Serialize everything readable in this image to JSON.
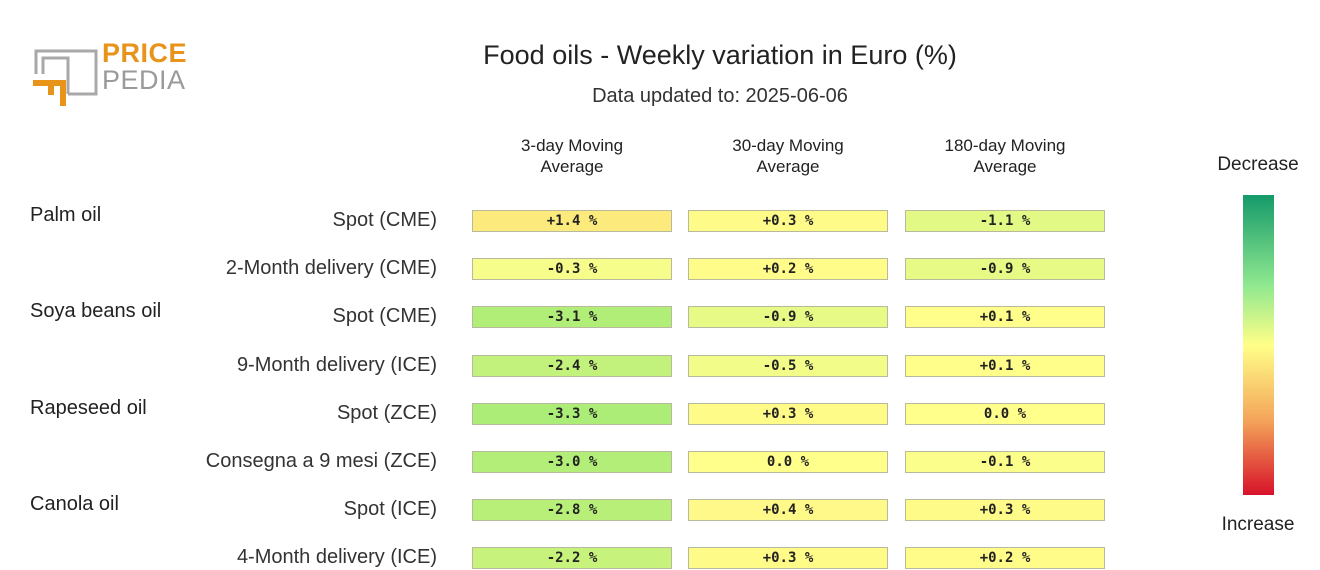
{
  "logo": {
    "line1": "PRICE",
    "line2": "PEDIA"
  },
  "title": "Food oils - Weekly variation in Euro (%)",
  "subtitle": "Data updated to: 2025-06-06",
  "legend": {
    "top": "Decrease",
    "bottom": "Increase",
    "colors": [
      "#159a6a",
      "#8fe88f",
      "#ffff88",
      "#f4a55a",
      "#d7122a"
    ]
  },
  "chart_data": {
    "type": "table",
    "columns": [
      "3-day Moving\nAverage",
      "30-day Moving\nAverage",
      "180-day Moving\nAverage"
    ],
    "groups": [
      "Palm oil",
      "Soya beans oil",
      "Rapeseed oil",
      "Canola oil"
    ],
    "rows": [
      {
        "group": "Palm oil",
        "label": "Spot (CME)",
        "values": [
          1.4,
          0.3,
          -1.1
        ],
        "display": [
          "+1.4 %",
          "+0.3 %",
          "-1.1 %"
        ]
      },
      {
        "group": "Palm oil",
        "label": "2-Month delivery (CME)",
        "values": [
          -0.3,
          0.2,
          -0.9
        ],
        "display": [
          "-0.3 %",
          "+0.2 %",
          "-0.9 %"
        ]
      },
      {
        "group": "Soya beans oil",
        "label": "Spot (CME)",
        "values": [
          -3.1,
          -0.9,
          0.1
        ],
        "display": [
          "-3.1 %",
          "-0.9 %",
          "+0.1 %"
        ]
      },
      {
        "group": "Soya beans oil",
        "label": "9-Month delivery (ICE)",
        "values": [
          -2.4,
          -0.5,
          0.1
        ],
        "display": [
          "-2.4 %",
          "-0.5 %",
          "+0.1 %"
        ]
      },
      {
        "group": "Rapeseed oil",
        "label": "Spot (ZCE)",
        "values": [
          -3.3,
          0.3,
          0.0
        ],
        "display": [
          "-3.3 %",
          "+0.3 %",
          "0.0 %"
        ]
      },
      {
        "group": "Rapeseed oil",
        "label": "Consegna a 9 mesi (ZCE)",
        "values": [
          -3.0,
          0.0,
          -0.1
        ],
        "display": [
          "-3.0 %",
          "0.0 %",
          "-0.1 %"
        ]
      },
      {
        "group": "Canola oil",
        "label": "Spot (ICE)",
        "values": [
          -2.8,
          0.4,
          0.3
        ],
        "display": [
          "-2.8 %",
          "+0.4 %",
          "+0.3 %"
        ]
      },
      {
        "group": "Canola oil",
        "label": "4-Month delivery (ICE)",
        "values": [
          -2.2,
          0.3,
          0.2
        ],
        "display": [
          "-2.2 %",
          "+0.3 %",
          "+0.2 %"
        ]
      }
    ]
  }
}
